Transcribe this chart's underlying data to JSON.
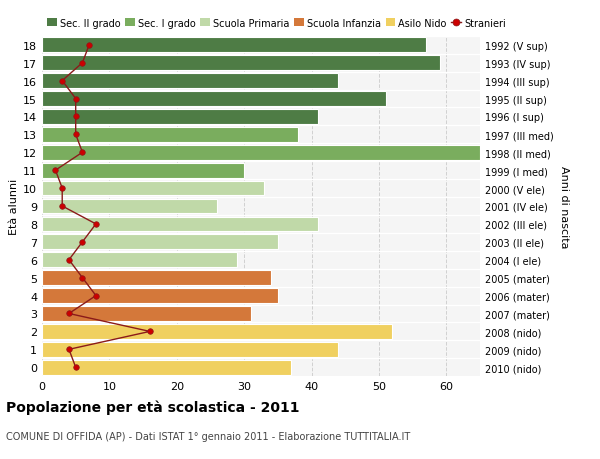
{
  "ages": [
    18,
    17,
    16,
    15,
    14,
    13,
    12,
    11,
    10,
    9,
    8,
    7,
    6,
    5,
    4,
    3,
    2,
    1,
    0
  ],
  "bar_values": [
    57,
    59,
    44,
    51,
    41,
    38,
    65,
    30,
    33,
    26,
    41,
    35,
    29,
    34,
    35,
    31,
    52,
    44,
    37
  ],
  "bar_colors": [
    "#4e7c45",
    "#4e7c45",
    "#4e7c45",
    "#4e7c45",
    "#4e7c45",
    "#7aad5e",
    "#7aad5e",
    "#7aad5e",
    "#c0d9a8",
    "#c0d9a8",
    "#c0d9a8",
    "#c0d9a8",
    "#c0d9a8",
    "#d4783a",
    "#d4783a",
    "#d4783a",
    "#f0d060",
    "#f0d060",
    "#f0d060"
  ],
  "right_labels": [
    "1992 (V sup)",
    "1993 (IV sup)",
    "1994 (III sup)",
    "1995 (II sup)",
    "1996 (I sup)",
    "1997 (III med)",
    "1998 (II med)",
    "1999 (I med)",
    "2000 (V ele)",
    "2001 (IV ele)",
    "2002 (III ele)",
    "2003 (II ele)",
    "2004 (I ele)",
    "2005 (mater)",
    "2006 (mater)",
    "2007 (mater)",
    "2008 (nido)",
    "2009 (nido)",
    "2010 (nido)"
  ],
  "stranieri_values": [
    7,
    6,
    3,
    5,
    5,
    5,
    6,
    2,
    3,
    3,
    8,
    6,
    4,
    6,
    8,
    4,
    16,
    4,
    5
  ],
  "legend_labels": [
    "Sec. II grado",
    "Sec. I grado",
    "Scuola Primaria",
    "Scuola Infanzia",
    "Asilo Nido",
    "Stranieri"
  ],
  "legend_colors": [
    "#4e7c45",
    "#7aad5e",
    "#c0d9a8",
    "#d4783a",
    "#f0d060",
    "#cc0000"
  ],
  "title": "Popolazione per età scolastica - 2011",
  "subtitle": "COMUNE DI OFFIDA (AP) - Dati ISTAT 1° gennaio 2011 - Elaborazione TUTTITALIA.IT",
  "ylabel_left": "Età alunni",
  "ylabel_right": "Anni di nascita",
  "xlim": [
    0,
    65
  ],
  "background_color": "#ffffff",
  "plot_background": "#f5f5f5",
  "bar_height": 0.82,
  "grid_color": "#d0d0d0"
}
